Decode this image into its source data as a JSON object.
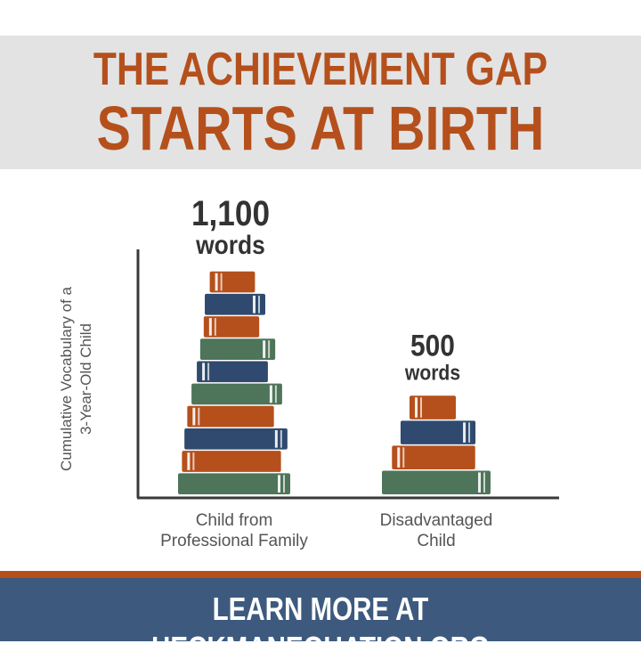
{
  "header": {
    "line1": "THE ACHIEVEMENT GAP",
    "line2": "STARTS AT BIRTH"
  },
  "footer": {
    "cta": "LEARN MORE AT HECKMANEQUATION.ORG"
  },
  "colors": {
    "accent": "#b5501c",
    "footer_bg": "#3d5a7e",
    "header_bg": "#e3e3e3",
    "book_orange": "#b5501c",
    "book_blue": "#2f4a6e",
    "book_green": "#4e7459"
  },
  "chart_data": {
    "type": "bar",
    "categories": [
      "Child from Professional Family",
      "Disadvantaged Child"
    ],
    "category_lines": [
      [
        "Child from",
        "Professional Family"
      ],
      [
        "Disadvantaged",
        "Child"
      ]
    ],
    "values": [
      1100,
      500
    ],
    "value_labels": [
      {
        "number": "1,100",
        "unit": "words"
      },
      {
        "number": "500",
        "unit": "words"
      }
    ],
    "ylabel_lines": [
      "Cumulative Vocabulary of a",
      "3-Year-Old Child"
    ],
    "ylim": [
      0,
      1200
    ],
    "grid": false,
    "legend": "none",
    "mark_style": "stacked books"
  }
}
